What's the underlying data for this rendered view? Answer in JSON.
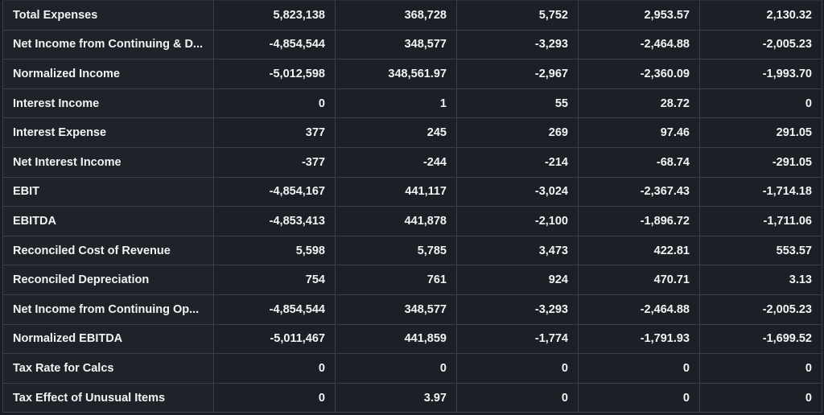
{
  "rows": [
    {
      "label": "Total Expenses",
      "values": [
        "5,823,138",
        "368,728",
        "5,752",
        "2,953.57",
        "2,130.32"
      ]
    },
    {
      "label": "Net Income from Continuing & D...",
      "values": [
        "-4,854,544",
        "348,577",
        "-3,293",
        "-2,464.88",
        "-2,005.23"
      ]
    },
    {
      "label": "Normalized Income",
      "values": [
        "-5,012,598",
        "348,561.97",
        "-2,967",
        "-2,360.09",
        "-1,993.70"
      ]
    },
    {
      "label": "Interest Income",
      "values": [
        "0",
        "1",
        "55",
        "28.72",
        "0"
      ]
    },
    {
      "label": "Interest Expense",
      "values": [
        "377",
        "245",
        "269",
        "97.46",
        "291.05"
      ]
    },
    {
      "label": "Net Interest Income",
      "values": [
        "-377",
        "-244",
        "-214",
        "-68.74",
        "-291.05"
      ]
    },
    {
      "label": "EBIT",
      "values": [
        "-4,854,167",
        "441,117",
        "-3,024",
        "-2,367.43",
        "-1,714.18"
      ]
    },
    {
      "label": "EBITDA",
      "values": [
        "-4,853,413",
        "441,878",
        "-2,100",
        "-1,896.72",
        "-1,711.06"
      ]
    },
    {
      "label": "Reconciled Cost of Revenue",
      "values": [
        "5,598",
        "5,785",
        "3,473",
        "422.81",
        "553.57"
      ]
    },
    {
      "label": "Reconciled Depreciation",
      "values": [
        "754",
        "761",
        "924",
        "470.71",
        "3.13"
      ]
    },
    {
      "label": "Net Income from Continuing Op...",
      "values": [
        "-4,854,544",
        "348,577",
        "-3,293",
        "-2,464.88",
        "-2,005.23"
      ]
    },
    {
      "label": "Normalized EBITDA",
      "values": [
        "-5,011,467",
        "441,859",
        "-1,774",
        "-1,791.93",
        "-1,699.52"
      ]
    },
    {
      "label": "Tax Rate for Calcs",
      "values": [
        "0",
        "0",
        "0",
        "0",
        "0"
      ]
    },
    {
      "label": "Tax Effect of Unusual Items",
      "values": [
        "0",
        "3.97",
        "0",
        "0",
        "0"
      ]
    }
  ],
  "colors": {
    "background": "#1a1d25",
    "cell": "#1c1f26",
    "border": "#3a3f4a",
    "text": "#f2f3f5"
  }
}
